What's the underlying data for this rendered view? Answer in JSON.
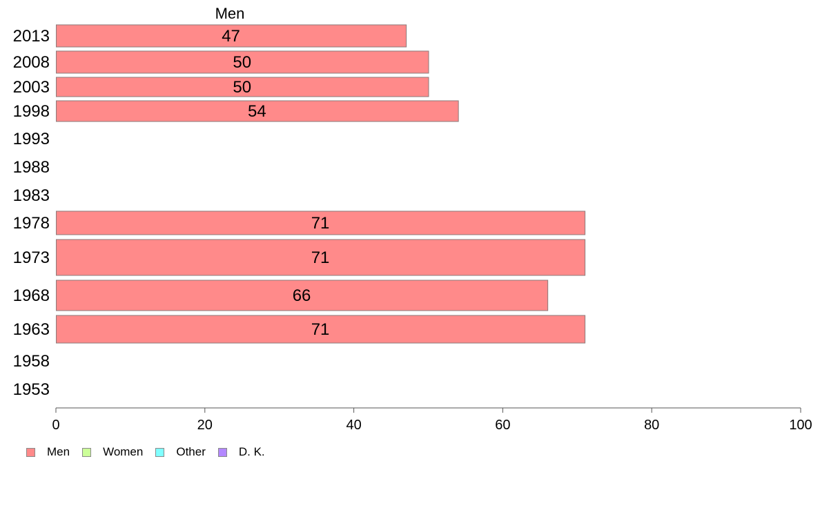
{
  "chart_data": {
    "type": "bar",
    "orientation": "horizontal",
    "title": "Men",
    "categories": [
      "2013",
      "2008",
      "2003",
      "1998",
      "1993",
      "1988",
      "1983",
      "1978",
      "1973",
      "1968",
      "1963",
      "1958",
      "1953"
    ],
    "series": [
      {
        "name": "Men",
        "color": "#ff8a8a",
        "values": [
          47,
          50,
          50,
          54,
          null,
          null,
          null,
          71,
          71,
          66,
          71,
          null,
          null
        ],
        "labels": [
          "47",
          "50",
          "50",
          "54",
          "",
          "",
          "",
          "71",
          "71",
          "66",
          "71",
          "",
          ""
        ]
      }
    ],
    "xlim": [
      0,
      100
    ],
    "xticks": [
      0,
      20,
      40,
      60,
      80,
      100
    ],
    "xlabel": "",
    "ylabel": "",
    "grid": false,
    "legend_position": "bottom-left"
  },
  "legend": {
    "items": [
      {
        "label": "Men",
        "color": "#ff8a8a"
      },
      {
        "label": "Women",
        "color": "#ccff99"
      },
      {
        "label": "Other",
        "color": "#80ffff"
      },
      {
        "label": "D. K.",
        "color": "#b388ff"
      }
    ]
  }
}
